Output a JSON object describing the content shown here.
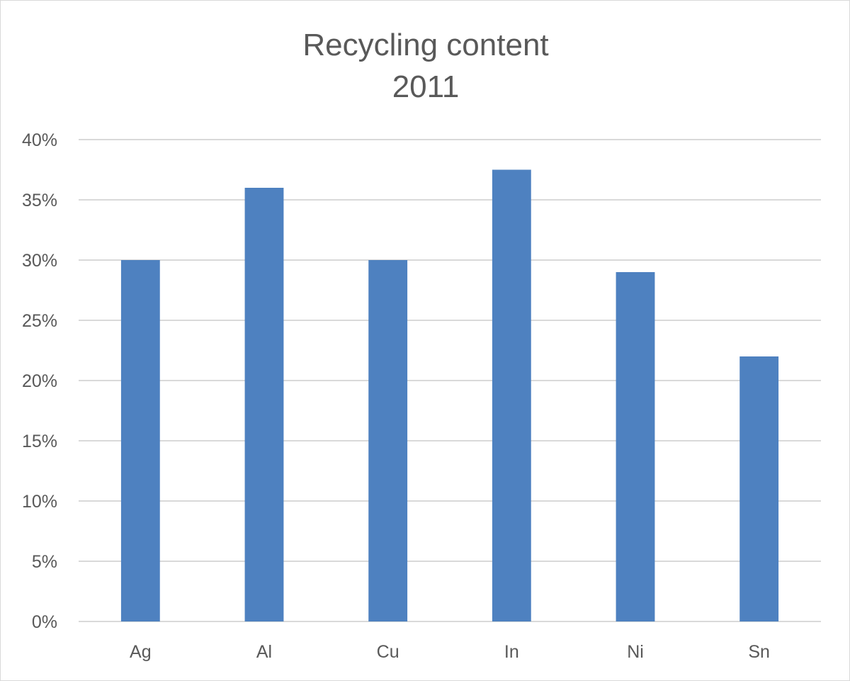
{
  "chart_data": {
    "type": "bar",
    "title": "Recycling content",
    "subtitle": "2011",
    "categories": [
      "Ag",
      "Al",
      "Cu",
      "In",
      "Ni",
      "Sn"
    ],
    "values": [
      0.3,
      0.36,
      0.3,
      0.375,
      0.29,
      0.22
    ],
    "ylim": [
      0,
      0.4
    ],
    "yticks": [
      0,
      0.05,
      0.1,
      0.15,
      0.2,
      0.25,
      0.3,
      0.35,
      0.4
    ],
    "ytick_labels": [
      "0%",
      "5%",
      "10%",
      "15%",
      "20%",
      "25%",
      "30%",
      "35%",
      "40%"
    ],
    "grid": true,
    "legend": "none",
    "bar_color": "#4e81c0"
  }
}
